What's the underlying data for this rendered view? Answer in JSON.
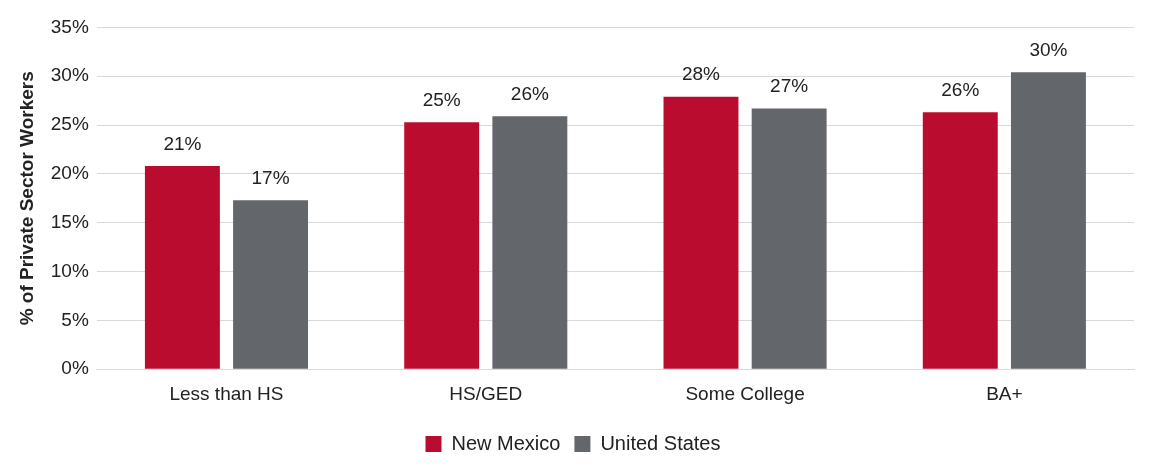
{
  "chart_data": {
    "type": "bar",
    "ylabel": "% of Private Sector Workers",
    "categories": [
      "Less than HS",
      "HS/GED",
      "Some College",
      "BA+"
    ],
    "series": [
      {
        "name": "New Mexico",
        "color": "#ba0c2f",
        "values": [
          20.8,
          25.3,
          27.9,
          26.3
        ],
        "value_labels": [
          "21%",
          "25%",
          "28%",
          "26%"
        ]
      },
      {
        "name": "United States",
        "color": "#63666a",
        "values": [
          17.3,
          25.9,
          26.7,
          30.4
        ],
        "value_labels": [
          "17%",
          "26%",
          "27%",
          "30%"
        ]
      }
    ],
    "ylim": [
      0,
      35
    ],
    "yticks": [
      {
        "value": 0,
        "label": "0%"
      },
      {
        "value": 5,
        "label": "5%"
      },
      {
        "value": 10,
        "label": "10%"
      },
      {
        "value": 15,
        "label": "15%"
      },
      {
        "value": 20,
        "label": "20%"
      },
      {
        "value": 25,
        "label": "25%"
      },
      {
        "value": 30,
        "label": "30%"
      },
      {
        "value": 35,
        "label": "35%"
      }
    ],
    "grid": "y",
    "legend": "bottom"
  }
}
